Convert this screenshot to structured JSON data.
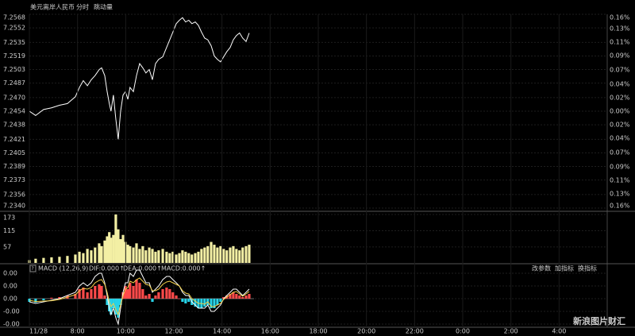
{
  "header": {
    "instrument": "美元离岸人民币",
    "tabs": [
      "分时",
      "跳动量"
    ]
  },
  "watermark": "新浪图片财汇",
  "chart_data": [
    {
      "type": "line",
      "ref_price": 7.2454,
      "up_color": "#ff4a4a",
      "down_color": "#3ccf3c",
      "color": "#ffffff",
      "grid": true,
      "xlim": [
        6,
        30
      ],
      "x": [
        6.0,
        6.26,
        6.59,
        6.92,
        7.25,
        7.58,
        7.91,
        8.08,
        8.24,
        8.41,
        8.57,
        8.73,
        8.9,
        9.0,
        9.13,
        9.23,
        9.32,
        9.39,
        9.49,
        9.59,
        9.69,
        9.79,
        9.89,
        9.99,
        10.09,
        10.18,
        10.32,
        10.45,
        10.58,
        10.71,
        10.84,
        10.98,
        11.11,
        11.24,
        11.37,
        11.54,
        11.7,
        11.83,
        11.96,
        12.1,
        12.23,
        12.36,
        12.49,
        12.62,
        12.75,
        12.89,
        13.02,
        13.15,
        13.28,
        13.41,
        13.55,
        13.68,
        13.81,
        13.94,
        14.07,
        14.2,
        14.34,
        14.47,
        14.6,
        14.73,
        14.86,
        15.0,
        15.13
      ],
      "values": [
        7.2454,
        7.2449,
        7.2456,
        7.2458,
        7.2461,
        7.2463,
        7.2471,
        7.2482,
        7.249,
        7.2484,
        7.2491,
        7.2496,
        7.2503,
        7.2505,
        7.2496,
        7.2477,
        7.2463,
        7.2454,
        7.2473,
        7.2445,
        7.2421,
        7.2454,
        7.2473,
        7.2477,
        7.2468,
        7.2482,
        7.2477,
        7.2496,
        7.251,
        7.2505,
        7.2499,
        7.2503,
        7.2491,
        7.251,
        7.2515,
        7.2518,
        7.2529,
        7.2538,
        7.2547,
        7.2557,
        7.2561,
        7.2564,
        7.2559,
        7.2561,
        7.2557,
        7.2559,
        7.2555,
        7.2547,
        7.254,
        7.2538,
        7.2531,
        7.2519,
        7.2515,
        7.2512,
        7.2518,
        7.2524,
        7.2529,
        7.2538,
        7.2543,
        7.2546,
        7.254,
        7.2536,
        7.2546
      ],
      "ylim": [
        7.234,
        7.2568
      ],
      "yticks": [
        7.2568,
        7.2552,
        7.2535,
        7.2519,
        7.2503,
        7.2487,
        {
          "value": 7.247,
          "label": "7.2470"
        },
        7.2454,
        7.2438,
        7.2421,
        7.2405,
        7.2389,
        7.2373,
        7.2356,
        {
          "value": 7.234,
          "label": "7.2340"
        }
      ],
      "y2lim": [
        -0.157,
        0.157
      ],
      "y2ticks": [
        {
          "value": 0.157,
          "label": "0.16%"
        },
        {
          "value": 0.134,
          "label": "0.13%"
        },
        {
          "value": 0.112,
          "label": "0.11%"
        },
        {
          "value": 0.09,
          "label": "0.09%"
        },
        {
          "value": 0.067,
          "label": "0.07%"
        },
        {
          "value": 0.044,
          "label": "0.04%"
        },
        {
          "value": 0.022,
          "label": "0.02%"
        },
        {
          "value": 0,
          "label": "0.00%"
        },
        {
          "value": -0.022,
          "label": "0.02%"
        },
        {
          "value": -0.044,
          "label": "0.04%"
        },
        {
          "value": -0.067,
          "label": "0.07%"
        },
        {
          "value": -0.09,
          "label": "0.09%"
        },
        {
          "value": -0.112,
          "label": "0.11%"
        },
        {
          "value": -0.134,
          "label": "0.13%"
        },
        {
          "value": -0.157,
          "label": "0.16%"
        }
      ]
    },
    {
      "type": "bar",
      "color": "#f3efa4",
      "xlim": [
        6,
        30
      ],
      "x": [
        6.0,
        6.26,
        6.59,
        6.92,
        7.25,
        7.58,
        7.91,
        8.08,
        8.24,
        8.41,
        8.57,
        8.73,
        8.9,
        9.0,
        9.13,
        9.23,
        9.32,
        9.39,
        9.49,
        9.59,
        9.69,
        9.79,
        9.89,
        9.99,
        10.09,
        10.18,
        10.32,
        10.45,
        10.58,
        10.71,
        10.84,
        10.98,
        11.11,
        11.24,
        11.37,
        11.54,
        11.7,
        11.83,
        11.96,
        12.1,
        12.23,
        12.36,
        12.49,
        12.62,
        12.75,
        12.89,
        13.02,
        13.15,
        13.28,
        13.41,
        13.55,
        13.68,
        13.81,
        13.94,
        14.07,
        14.2,
        14.34,
        14.47,
        14.6,
        14.73,
        14.86,
        15.0,
        15.13
      ],
      "values": [
        10,
        15,
        18,
        20,
        22,
        25,
        30,
        40,
        35,
        50,
        45,
        55,
        70,
        60,
        80,
        95,
        110,
        90,
        100,
        173,
        120,
        85,
        100,
        75,
        65,
        60,
        55,
        70,
        50,
        60,
        45,
        55,
        50,
        40,
        45,
        50,
        40,
        35,
        40,
        30,
        35,
        45,
        40,
        35,
        30,
        35,
        40,
        50,
        55,
        60,
        75,
        65,
        55,
        60,
        50,
        45,
        55,
        60,
        50,
        45,
        55,
        60,
        65
      ],
      "ylim": [
        0,
        173
      ],
      "yticks": [
        173,
        115,
        57
      ]
    },
    {
      "type": "combo",
      "title": "MACD (12,26,9)",
      "up_color": "#ff4a4a",
      "down_color": "#27d3e8",
      "xlim": [
        6,
        30
      ],
      "toolbar": [
        "改参数",
        "加指标",
        "换指标"
      ],
      "x": [
        6.0,
        6.26,
        6.59,
        6.92,
        7.25,
        7.58,
        7.91,
        8.08,
        8.24,
        8.41,
        8.57,
        8.73,
        8.9,
        9.0,
        9.13,
        9.23,
        9.32,
        9.39,
        9.49,
        9.59,
        9.69,
        9.79,
        9.89,
        9.99,
        10.09,
        10.18,
        10.32,
        10.45,
        10.58,
        10.71,
        10.84,
        10.98,
        11.11,
        11.24,
        11.37,
        11.54,
        11.7,
        11.83,
        11.96,
        12.1,
        12.23,
        12.36,
        12.49,
        12.62,
        12.75,
        12.89,
        13.02,
        13.15,
        13.28,
        13.41,
        13.55,
        13.68,
        13.81,
        13.94,
        14.07,
        14.2,
        14.34,
        14.47,
        14.6,
        14.73,
        14.86,
        15.0,
        15.13
      ],
      "series": [
        {
          "name": "DIF:0.000↑",
          "color": "#ffffff",
          "style": "line",
          "values": [
            -0.0001,
            -0.00015,
            -0.0001,
            -5e-05,
            0,
            0.0001,
            0.0002,
            0.0004,
            0.0005,
            0.0004,
            0.0005,
            0.0007,
            0.0008,
            0.0008,
            0.0005,
            0.0001,
            -0.0003,
            -0.0005,
            -0.0003,
            -0.0006,
            -0.0008,
            -0.0003,
            0.0002,
            0.0005,
            0.0005,
            0.0008,
            0.0007,
            0.0009,
            0.0009,
            0.0007,
            0.0005,
            0.0005,
            0.0002,
            0.0003,
            0.0004,
            0.0006,
            0.0007,
            0.0007,
            0.0006,
            0.0005,
            0.0004,
            0.0002,
            0.0001,
            0.0001,
            -0.0001,
            -0.0002,
            -0.0003,
            -0.0003,
            -0.0003,
            -0.0002,
            -0.0004,
            -0.0004,
            -0.0003,
            -0.0002,
            0,
            0.0001,
            0.0002,
            0.0003,
            0.0003,
            0.0002,
            0.0001,
            0.0002,
            0.0003
          ]
        },
        {
          "name": "DEA:0.000↑",
          "color": "#f2d04a",
          "style": "line",
          "values": [
            -5e-05,
            -9e-05,
            -7.5e-05,
            -6.5e-05,
            -2.5e-05,
            5e-05,
            0.000125,
            0.00025,
            0.000325,
            0.0003,
            0.00035,
            0.0005,
            0.000575,
            0.0006,
            0.00045,
            0.0002,
            -0.0001,
            -0.00025,
            -0.00015,
            -0.00035,
            -0.0005,
            -0.0002,
            0.0001,
            0.0003,
            0.00035,
            0.00055,
            0.0005,
            0.0006,
            0.00065,
            0.00055,
            0.00045,
            0.000425,
            0.00025,
            0.00025,
            0.0003,
            0.00045,
            0.000525,
            0.00055,
            0.0005,
            0.00045,
            0.0004,
            0.00025,
            0.000175,
            0.00015,
            0,
            -7.5e-05,
            -0.00015,
            -0.00015,
            -0.000175,
            -0.0001,
            -0.00025,
            -0.00025,
            -0.0002,
            -0.00015,
            -2.5e-05,
            5e-05,
            0.000125,
            0.0002,
            0.000225,
            0.00015,
            7.5e-05,
            0.00015,
            0.000225
          ]
        },
        {
          "name": "MACD:0.000↑",
          "color": "#ff4a4a",
          "style": "bar",
          "values": [
            -0.0001,
            -0.00012,
            -5e-05,
            3e-05,
            5e-05,
            0.0001,
            0.00015,
            0.0003,
            0.00035,
            0.0002,
            0.0003,
            0.0004,
            0.00045,
            0.0004,
            0.0001,
            -0.0002,
            -0.0004,
            -0.0005,
            -0.0003,
            -0.0005,
            -0.0006,
            -0.0002,
            0.0002,
            0.0004,
            0.0003,
            0.0005,
            0.0004,
            0.0006,
            0.0005,
            0.0003,
            0.0001,
            0.00015,
            -0.0001,
            0.0001,
            0.0002,
            0.0003,
            0.00035,
            0.0003,
            0.0002,
            0.0001,
            0,
            -0.0001,
            -0.00015,
            -0.0001,
            -0.0002,
            -0.00025,
            -0.0003,
            -0.0003,
            -0.00025,
            -0.0002,
            -0.0003,
            -0.0003,
            -0.0002,
            -0.0001,
            5e-05,
            0.0001,
            0.00015,
            0.0002,
            0.00015,
            0.0001,
            5e-05,
            0.0001,
            0.00015
          ]
        }
      ],
      "ylim": [
        -0.0009,
        0.001
      ],
      "yticks": [
        {
          "value": 0.0008,
          "label": "0.00"
        },
        {
          "value": 0.0004,
          "label": "0.00"
        },
        {
          "value": 0,
          "label": "0.00"
        },
        {
          "value": -0.0004,
          "label": "-0.00"
        },
        {
          "value": -0.0008,
          "label": "-0.00"
        }
      ],
      "xticks": [
        {
          "value": 6,
          "label": "11/28"
        },
        {
          "value": 8,
          "label": "8:00"
        },
        {
          "value": 10,
          "label": "10:00"
        },
        {
          "value": 12,
          "label": "12:00"
        },
        {
          "value": 14,
          "label": "14:00"
        },
        {
          "value": 16,
          "label": "16:00"
        },
        {
          "value": 18,
          "label": "18:00"
        },
        {
          "value": 20,
          "label": "20:00"
        },
        {
          "value": 22,
          "label": "22:00"
        },
        {
          "value": 24,
          "label": "0:00"
        },
        {
          "value": 26,
          "label": "2:00"
        },
        {
          "value": 28,
          "label": "4:00"
        }
      ]
    }
  ]
}
